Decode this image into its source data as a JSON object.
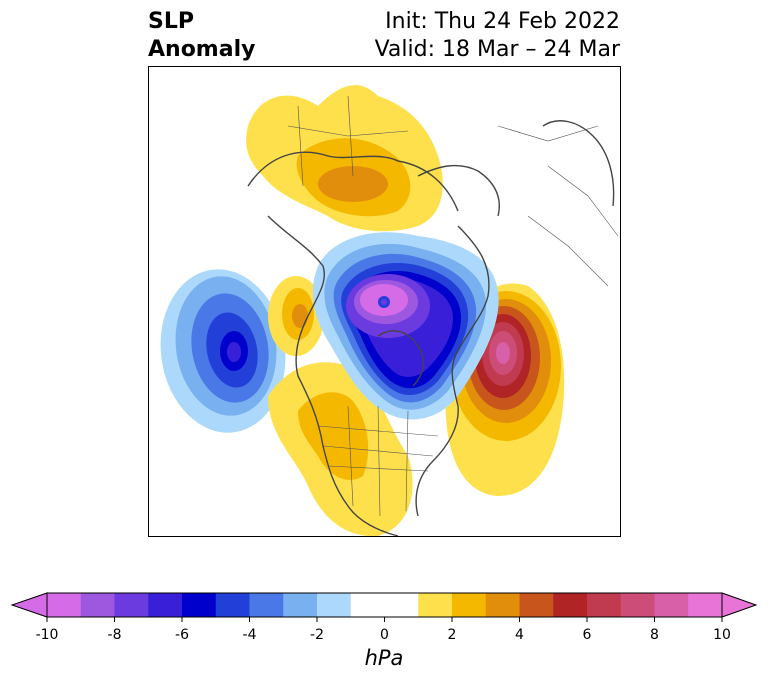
{
  "title": {
    "left_line1": "SLP",
    "left_line2": "Anomaly",
    "init": "Init: Thu 24 Feb 2022",
    "valid": "Valid: 18 Mar – 24 Mar"
  },
  "colorbar": {
    "unit": "hPa",
    "ticks": [
      "-10",
      "-8",
      "-6",
      "-4",
      "-2",
      "0",
      "2",
      "4",
      "6",
      "8",
      "10"
    ],
    "min": -10,
    "max": 10,
    "colors": [
      "#d66be8",
      "#9e58e0",
      "#6b3be0",
      "#3a1fd8",
      "#0000cc",
      "#2240d8",
      "#4a78e6",
      "#78b0f0",
      "#acd9fb",
      "#ffffff",
      "#ffffff",
      "#fde04b",
      "#f5b800",
      "#e08e0b",
      "#c8561c",
      "#b02426",
      "#c03a50",
      "#cc4e78",
      "#d860a8",
      "#e874d8"
    ],
    "bounds": [
      -10,
      -9,
      -8,
      -7,
      -6,
      -5,
      -4,
      -3,
      -2,
      -1,
      0,
      1,
      2,
      3,
      4,
      5,
      6,
      7,
      8,
      9,
      10
    ]
  }
}
